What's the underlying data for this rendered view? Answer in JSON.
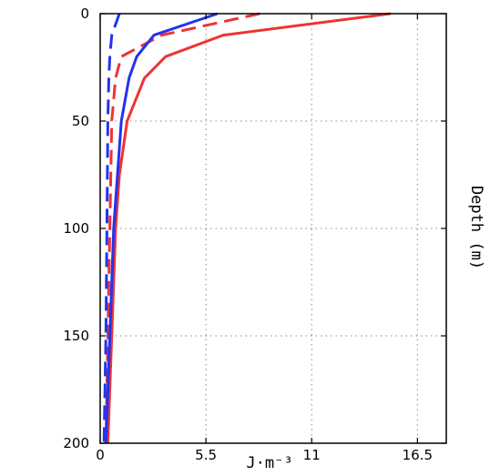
{
  "chart_data": {
    "type": "line",
    "title": "",
    "xlabel": "J·m⁻³",
    "ylabel": "Depth (m)",
    "xlim": [
      0,
      18
    ],
    "ylim": [
      200,
      0
    ],
    "x_ticks": [
      0,
      5.5,
      11,
      16.5
    ],
    "x_tick_labels": [
      "0",
      "5.5",
      "11",
      "16.5"
    ],
    "y_ticks": [
      0,
      50,
      100,
      150,
      200
    ],
    "y_tick_labels": [
      "0",
      "50",
      "100",
      "150",
      "200"
    ],
    "grid": "dotted",
    "legend": "none",
    "series": [
      {
        "color": "#ee3333",
        "dash": "solid",
        "points": [
          [
            15.1,
            0
          ],
          [
            6.4,
            10
          ],
          [
            3.4,
            20
          ],
          [
            2.3,
            30
          ],
          [
            1.4,
            50
          ],
          [
            1.0,
            75
          ],
          [
            0.8,
            100
          ],
          [
            0.6,
            150
          ],
          [
            0.4,
            200
          ]
        ]
      },
      {
        "color": "#ee3333",
        "dash": "dashed",
        "points": [
          [
            8.3,
            0
          ],
          [
            3.2,
            10
          ],
          [
            1.1,
            20
          ],
          [
            0.8,
            30
          ],
          [
            0.6,
            50
          ],
          [
            0.5,
            100
          ],
          [
            0.4,
            150
          ],
          [
            0.3,
            200
          ]
        ]
      },
      {
        "color": "#2233ee",
        "dash": "solid",
        "points": [
          [
            6.1,
            0
          ],
          [
            2.8,
            10
          ],
          [
            1.9,
            20
          ],
          [
            1.5,
            30
          ],
          [
            1.1,
            50
          ],
          [
            0.9,
            75
          ],
          [
            0.7,
            100
          ],
          [
            0.5,
            150
          ],
          [
            0.3,
            200
          ]
        ]
      },
      {
        "color": "#2233ee",
        "dash": "dashed",
        "points": [
          [
            1.0,
            0
          ],
          [
            0.6,
            10
          ],
          [
            0.5,
            20
          ],
          [
            0.45,
            30
          ],
          [
            0.4,
            50
          ],
          [
            0.35,
            100
          ],
          [
            0.3,
            150
          ],
          [
            0.2,
            200
          ]
        ]
      }
    ]
  }
}
